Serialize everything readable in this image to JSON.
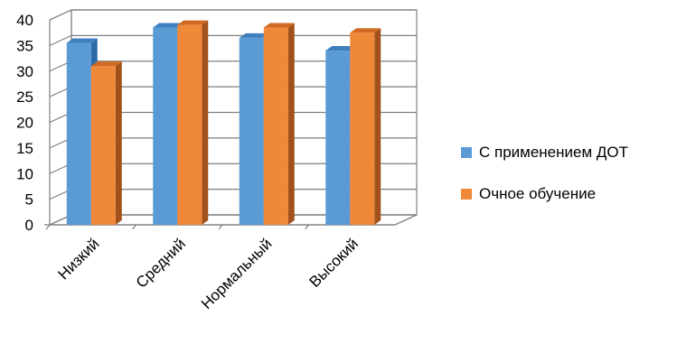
{
  "chart_data": {
    "type": "bar",
    "title": "",
    "xlabel": "",
    "ylabel": "",
    "categories": [
      "Низкий",
      "Средний",
      "Нормальный",
      "Высокий"
    ],
    "series": [
      {
        "name": "С применением ДОТ",
        "values": [
          35.5,
          38.5,
          36.5,
          34.0
        ],
        "color": "#5b9bd5",
        "side_color": "#2e6aa8",
        "top_color": "#3f7fc0"
      },
      {
        "name": "Очное обучение",
        "values": [
          31.0,
          39.0,
          38.5,
          37.5
        ],
        "color": "#f0883a",
        "side_color": "#a3511a",
        "top_color": "#d06a22"
      }
    ],
    "ylim": [
      0,
      40
    ],
    "yticks": [
      0,
      5,
      10,
      15,
      20,
      25,
      30,
      35,
      40
    ],
    "grid": true,
    "legend_position": "right",
    "three_d": true
  }
}
